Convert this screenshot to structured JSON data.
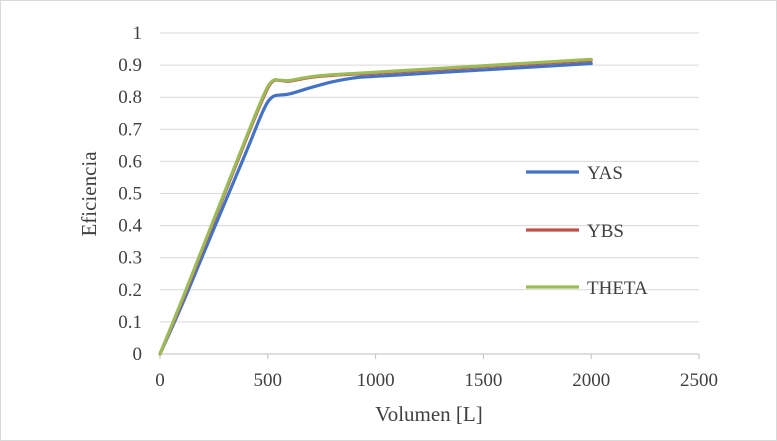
{
  "chart_data": {
    "type": "line",
    "title": "",
    "xlabel": "Volumen [L]",
    "ylabel": "Eficiencia",
    "xlim": [
      0,
      2500
    ],
    "ylim": [
      0,
      1
    ],
    "xticks": [
      0,
      500,
      1000,
      1500,
      2000,
      2500
    ],
    "yticks": [
      0,
      0.1,
      0.2,
      0.3,
      0.4,
      0.5,
      0.6,
      0.7,
      0.8,
      0.9,
      1
    ],
    "grid": "horizontal",
    "legend_position": "right",
    "series": [
      {
        "name": "YAS",
        "color": "#4472c4",
        "x": [
          0,
          100,
          200,
          300,
          400,
          480,
          520,
          560,
          600,
          700,
          800,
          900,
          1000,
          1500,
          2000
        ],
        "y": [
          0,
          0.15,
          0.31,
          0.47,
          0.63,
          0.76,
          0.8,
          0.807,
          0.81,
          0.83,
          0.848,
          0.86,
          0.865,
          0.885,
          0.905
        ]
      },
      {
        "name": "YBS",
        "color": "#c0504d",
        "x": [
          0,
          100,
          200,
          300,
          400,
          480,
          520,
          560,
          600,
          700,
          800,
          900,
          1000,
          1500,
          2000
        ],
        "y": [
          0,
          0.16,
          0.33,
          0.5,
          0.67,
          0.8,
          0.848,
          0.852,
          0.85,
          0.862,
          0.868,
          0.872,
          0.875,
          0.895,
          0.915
        ]
      },
      {
        "name": "THETA",
        "color": "#9bbb59",
        "x": [
          0,
          100,
          200,
          300,
          400,
          480,
          520,
          560,
          600,
          700,
          800,
          900,
          1000,
          1500,
          2000
        ],
        "y": [
          0,
          0.165,
          0.335,
          0.505,
          0.675,
          0.805,
          0.85,
          0.853,
          0.852,
          0.864,
          0.87,
          0.874,
          0.878,
          0.898,
          0.918
        ]
      }
    ]
  }
}
